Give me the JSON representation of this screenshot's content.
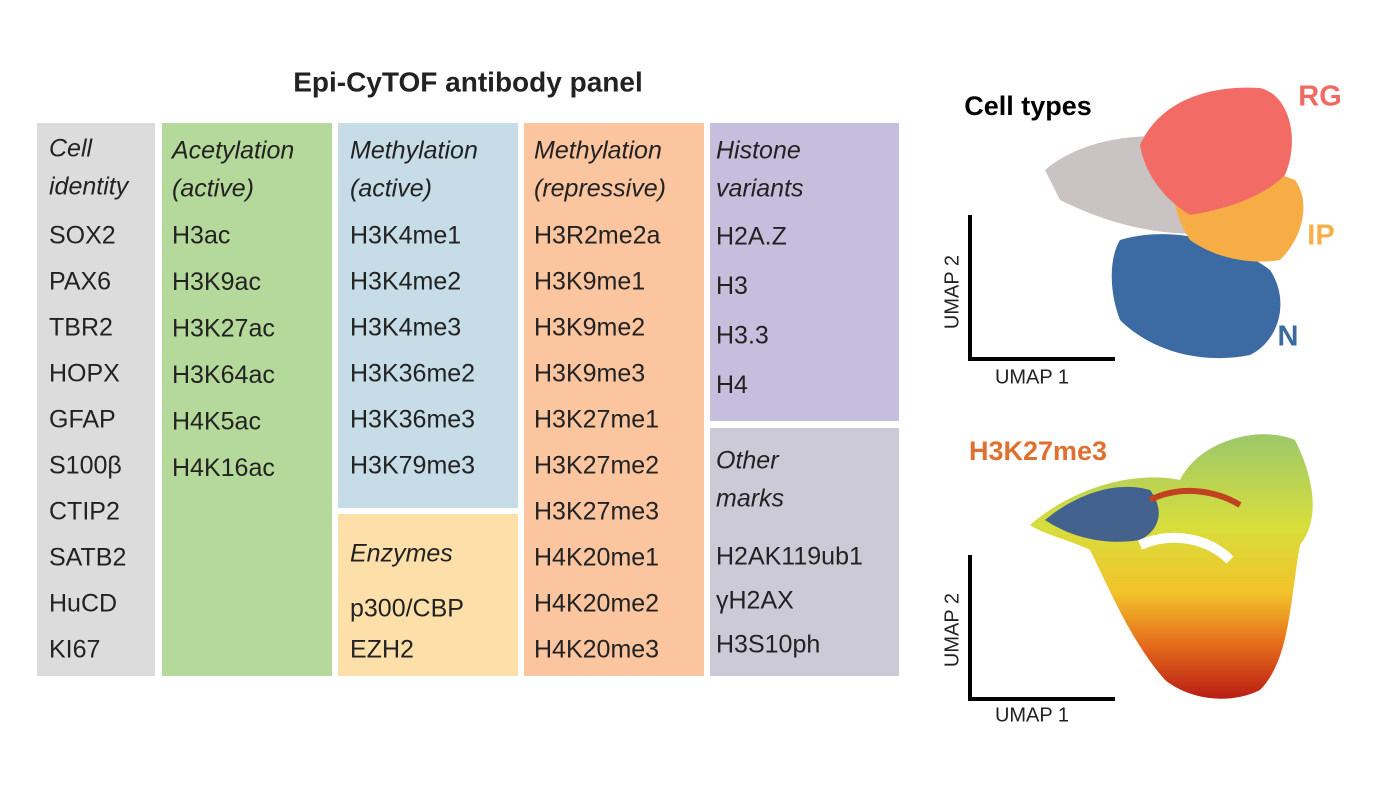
{
  "panel": {
    "title": "Epi-CyTOF antibody panel",
    "groups": [
      {
        "heading": [
          "Cell",
          "identity"
        ],
        "items": [
          "SOX2",
          "PAX6",
          "TBR2",
          "HOPX",
          "GFAP",
          "S100β",
          "CTIP2",
          "SATB2",
          "HuCD",
          "KI67"
        ]
      },
      {
        "heading": [
          "Acetylation",
          "(active)"
        ],
        "items": [
          "H3ac",
          "H3K9ac",
          "H3K27ac",
          "H3K64ac",
          "H4K5ac",
          "H4K16ac"
        ]
      },
      {
        "heading": [
          "Methylation",
          "(active)"
        ],
        "items": [
          "H3K4me1",
          "H3K4me2",
          "H3K4me3",
          "H3K36me2",
          "H3K36me3",
          "H3K79me3"
        ]
      },
      {
        "heading": [
          "Enzymes"
        ],
        "items": [
          "p300/CBP",
          "EZH2"
        ]
      },
      {
        "heading": [
          "Methylation",
          "(repressive)"
        ],
        "items": [
          "H3R2me2a",
          "H3K9me1",
          "H3K9me2",
          "H3K9me3",
          "H3K27me1",
          "H3K27me2",
          "H3K27me3",
          "H4K20me1",
          "H4K20me2",
          "H4K20me3"
        ]
      },
      {
        "heading": [
          "Histone",
          "variants"
        ],
        "items": [
          "H2A.Z",
          "H3",
          "H3.3",
          "H4"
        ]
      },
      {
        "heading": [
          "Other",
          "marks"
        ],
        "items": [
          "H2AK119ub1",
          "γH2AX",
          "H3S10ph"
        ]
      }
    ]
  },
  "umaps": [
    {
      "title": "Cell types",
      "labels": [
        "RG",
        "IP",
        "N"
      ],
      "x_label": "UMAP 1",
      "y_label": "UMAP 2"
    },
    {
      "title": "H3K27me3",
      "x_label": "UMAP 1",
      "y_label": "UMAP 2"
    }
  ]
}
